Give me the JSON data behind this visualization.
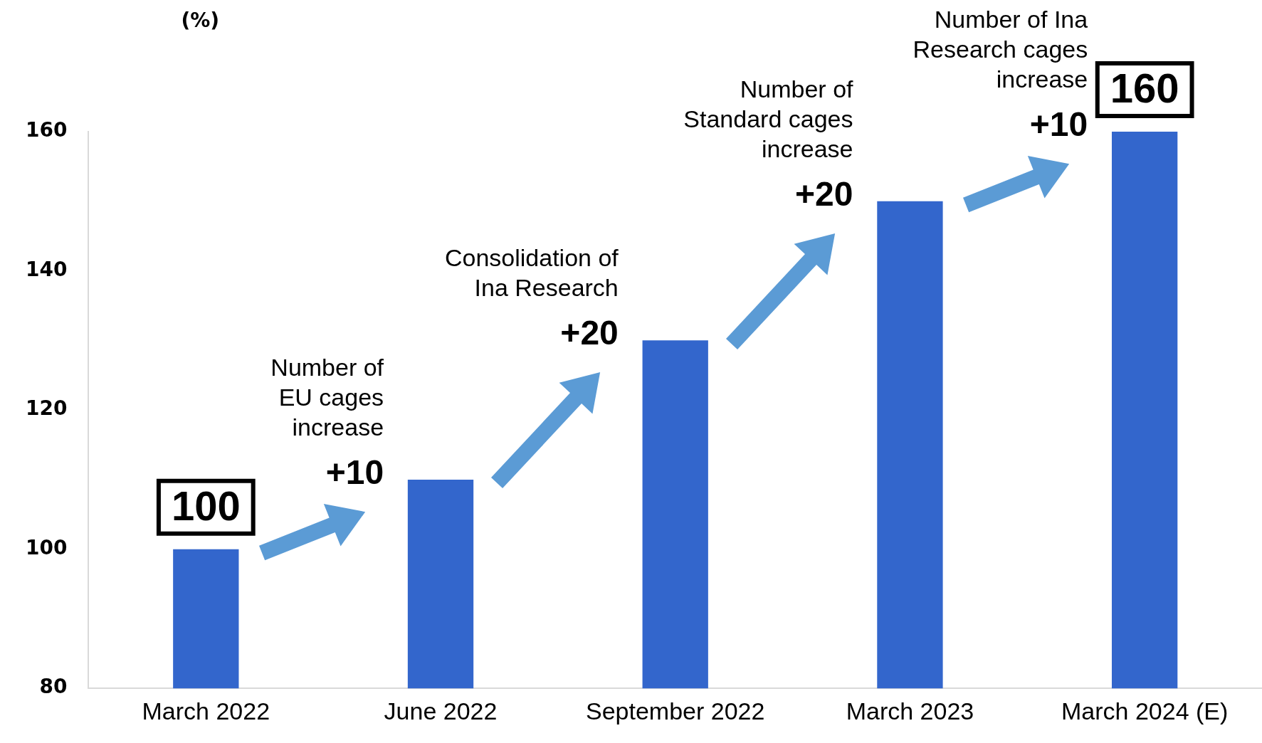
{
  "chart_data": {
    "type": "bar",
    "ylabel": "(%)",
    "categories": [
      "March 2022",
      "June 2022",
      "September 2022",
      "March 2023",
      "March 2024 (E)"
    ],
    "values": [
      100,
      110,
      130,
      150,
      160
    ],
    "color": "#3366cc",
    "value_labels": [
      "100",
      null,
      null,
      null,
      "160"
    ],
    "ylim": [
      80,
      160
    ],
    "yticks": [
      80,
      100,
      120,
      140,
      160
    ],
    "grid": false,
    "legend": false,
    "annotations": [
      {
        "text": "Number of\nEU cages\nincrease",
        "x": "June 2022",
        "y": 110
      },
      {
        "text": "+10",
        "x": "June 2022",
        "y": 110
      },
      {
        "text": "Consolidation of\nIna Research",
        "x": "September 2022",
        "y": 130
      },
      {
        "text": "+20",
        "x": "September 2022",
        "y": 130
      },
      {
        "text": "Number of\nStandard cages\nincrease",
        "x": "March 2023",
        "y": 150
      },
      {
        "text": "+20",
        "x": "March 2023",
        "y": 150
      },
      {
        "text": "Number of Ina\nResearch cages\nincrease",
        "x": "March 2024 (E)",
        "y": 160
      },
      {
        "text": "+10",
        "x": "March 2024 (E)",
        "y": 160
      }
    ]
  }
}
